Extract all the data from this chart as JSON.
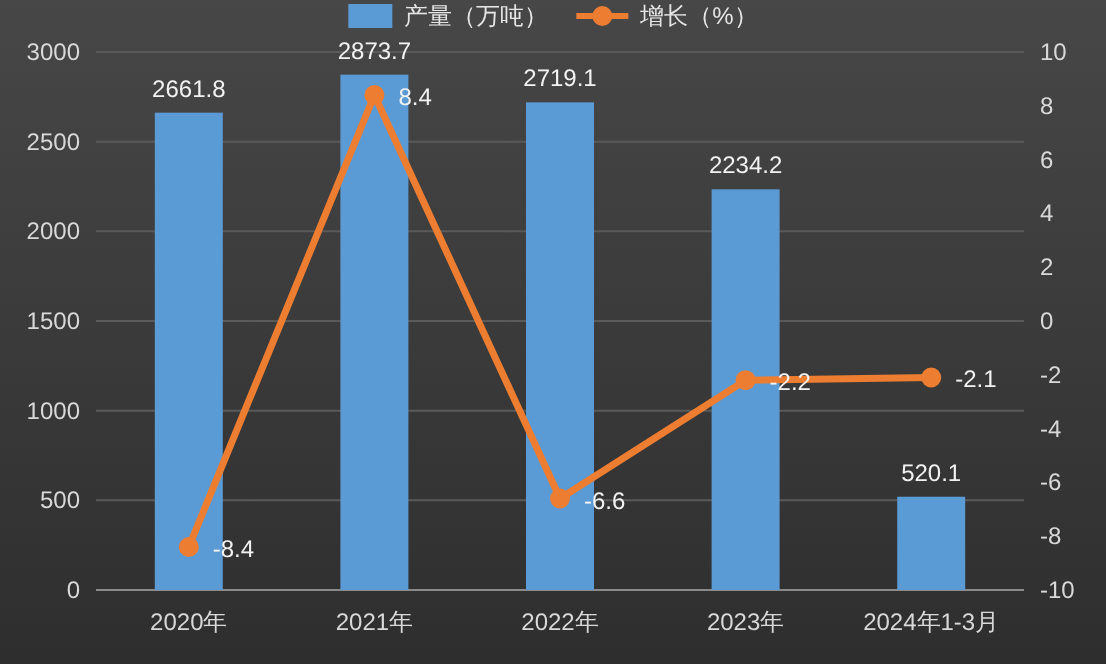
{
  "chart_data": {
    "type": "bar",
    "categories": [
      "2020年",
      "2021年",
      "2022年",
      "2023年",
      "2024年1-3月"
    ],
    "series": [
      {
        "name": "产量（万吨）",
        "color": "#5b9bd5",
        "values": [
          2661.8,
          2873.7,
          2719.1,
          2234.2,
          520.1
        ]
      },
      {
        "name": "增长（%）",
        "type": "line",
        "axis": "y2",
        "color": "#ed7d31",
        "values": [
          -8.4,
          8.4,
          -6.6,
          -2.2,
          -2.1
        ]
      }
    ],
    "ylim": [
      0,
      3000
    ],
    "yticks": [
      0,
      500,
      1000,
      1500,
      2000,
      2500,
      3000
    ],
    "y2lim": [
      -10,
      10
    ],
    "y2ticks": [
      -10,
      -8,
      -6,
      -4,
      -2,
      0,
      2,
      4,
      6,
      8,
      10
    ],
    "data_labels": true,
    "legend": "top",
    "grid": "y",
    "marker": "circle"
  }
}
